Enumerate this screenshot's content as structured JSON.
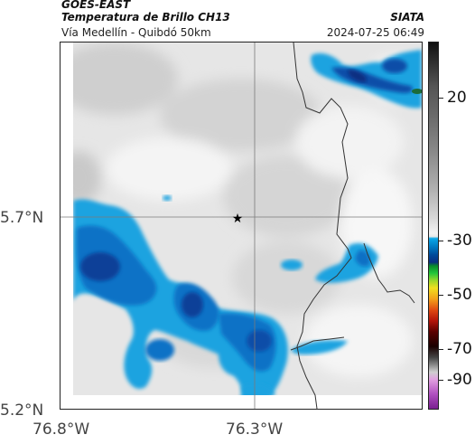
{
  "header": {
    "satellite": "GOES-EAST",
    "product": "Temperatura de Brillo CH13",
    "location": "Vía Medellín - Quibdó 50km",
    "organization": "SIATA",
    "timestamp": "2024-07-25 06:49"
  },
  "axes": {
    "lat_ticks": [
      "5.7°N",
      "5.2°N"
    ],
    "lon_ticks": [
      "76.8°W",
      "76.3°W"
    ]
  },
  "colorbar": {
    "labels": [
      "20",
      "-30",
      "-50",
      "-70",
      "-90"
    ]
  },
  "marker": {
    "icon": "star-icon"
  },
  "colors": {
    "cold_cloud_light": "#1ba3e0",
    "cold_cloud_mid": "#0a6fc4",
    "cold_cloud_dark": "#0a3f98",
    "background_gray": "#e6e6e6",
    "border_line": "#333333"
  }
}
